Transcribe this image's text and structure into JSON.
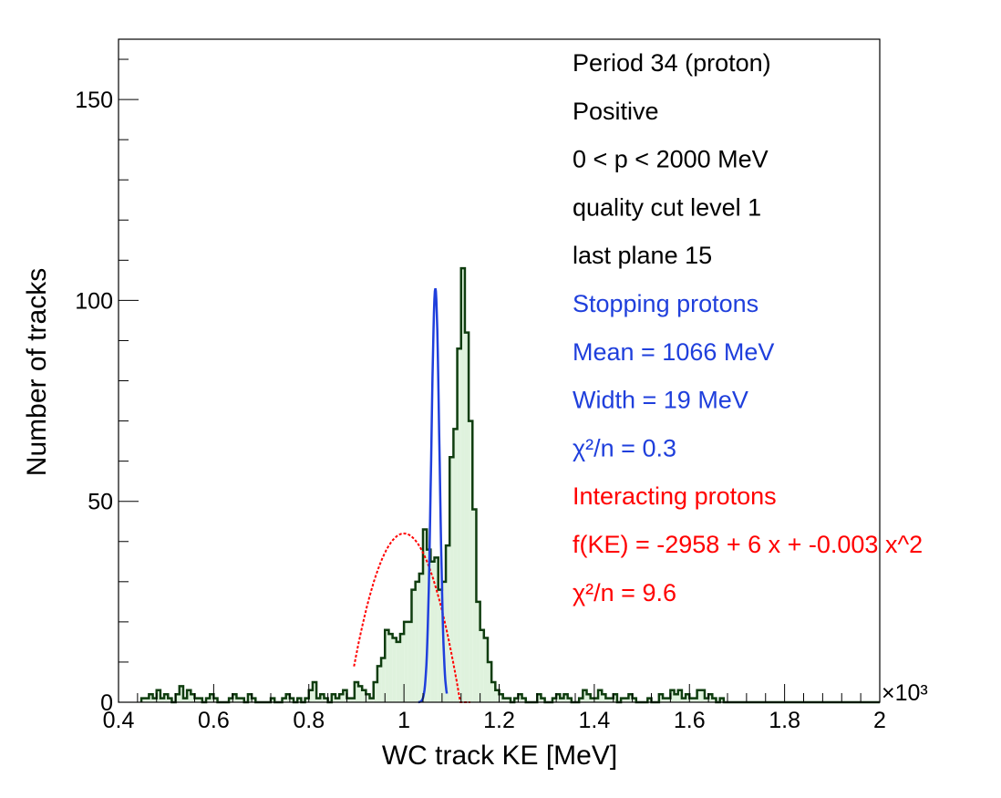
{
  "chart_data": {
    "type": "bar",
    "xlabel": "WC track KE [MeV]",
    "ylabel": "Number of tracks",
    "x_multiplier": "×10³",
    "xlim": [
      400,
      2000
    ],
    "ylim": [
      0,
      165
    ],
    "x_ticks": [
      "0.4",
      "0.6",
      "0.8",
      "1",
      "1.2",
      "1.4",
      "1.6",
      "1.8",
      "2"
    ],
    "y_ticks": [
      "0",
      "50",
      "100",
      "150"
    ],
    "grid": false,
    "colors": {
      "histogram_line": "#0f3d0f",
      "histogram_fill": "#dff2dd",
      "stopping_fit": "#1f3fdc",
      "interacting_fit": "#ff0000",
      "frame": "#000000"
    },
    "histogram": {
      "name": "WC track KE",
      "bin_width": 8,
      "x_start": 448,
      "counts": [
        1,
        1,
        2,
        1,
        3,
        1,
        2,
        1,
        0,
        2,
        4,
        1,
        3,
        2,
        1,
        1,
        0,
        1,
        2,
        1,
        0,
        0,
        0,
        1,
        2,
        1,
        1,
        0,
        2,
        1,
        0,
        0,
        0,
        0,
        1,
        0,
        0,
        1,
        2,
        1,
        0,
        1,
        0,
        1,
        3,
        5,
        1,
        2,
        1,
        0,
        2,
        1,
        2,
        3,
        1,
        1,
        5,
        4,
        3,
        2,
        1,
        5,
        9,
        11,
        18,
        17,
        16,
        15,
        17,
        20,
        20,
        28,
        30,
        32,
        43,
        38,
        35,
        36,
        28,
        30,
        39,
        61,
        68,
        88,
        108,
        92,
        70,
        48,
        25,
        18,
        16,
        10,
        5,
        3,
        2,
        1,
        1,
        0,
        1,
        2,
        1,
        0,
        0,
        0,
        2,
        1,
        0,
        0,
        1,
        2,
        1,
        2,
        1,
        0,
        0,
        1,
        3,
        2,
        1,
        1,
        3,
        2,
        1,
        1,
        2,
        0,
        1,
        1,
        2,
        1,
        0,
        0,
        0,
        1,
        0,
        0,
        2,
        1,
        1,
        3,
        2,
        3,
        1,
        2,
        1,
        1,
        3,
        3,
        1,
        2,
        1,
        0,
        1,
        0,
        0,
        0,
        0,
        0,
        0,
        0,
        0,
        0,
        0,
        0,
        0,
        0,
        0,
        0,
        0,
        0,
        0,
        0,
        0,
        0,
        0,
        0,
        0,
        0,
        0,
        0,
        0,
        0,
        0,
        0,
        0,
        0,
        0,
        0,
        0,
        0,
        0,
        0,
        0,
        0
      ]
    },
    "stopping_fit": {
      "name": "Stopping protons",
      "mean": 1066,
      "width": 19,
      "x_range": [
        1030,
        1090
      ]
    },
    "interacting_fit": {
      "name": "Interacting protons",
      "coefficients": [
        -2958,
        6,
        -0.003
      ],
      "x_range": [
        895,
        1140
      ]
    },
    "annotations": [
      {
        "text": "Period 34 (proton)",
        "color": "#000000"
      },
      {
        "text": "Positive",
        "color": "#000000"
      },
      {
        "text": "0 < p < 2000 MeV",
        "color": "#000000"
      },
      {
        "text": "quality cut level 1",
        "color": "#000000"
      },
      {
        "text": "last plane 15",
        "color": "#000000"
      },
      {
        "text": "Stopping protons",
        "color": "#1f3fdc"
      },
      {
        "text": " Mean = 1066 MeV",
        "color": "#1f3fdc"
      },
      {
        "text": " Width = 19 MeV",
        "color": "#1f3fdc"
      },
      {
        "text": "χ²/n = 0.3",
        "color": "#1f3fdc"
      },
      {
        "text": "Interacting protons",
        "color": "#ff0000"
      },
      {
        "text": " f(KE) = -2958 + 6 x + -0.003 x^2",
        "color": "#ff0000"
      },
      {
        "text": "χ²/n = 9.6",
        "color": "#ff0000"
      }
    ]
  }
}
